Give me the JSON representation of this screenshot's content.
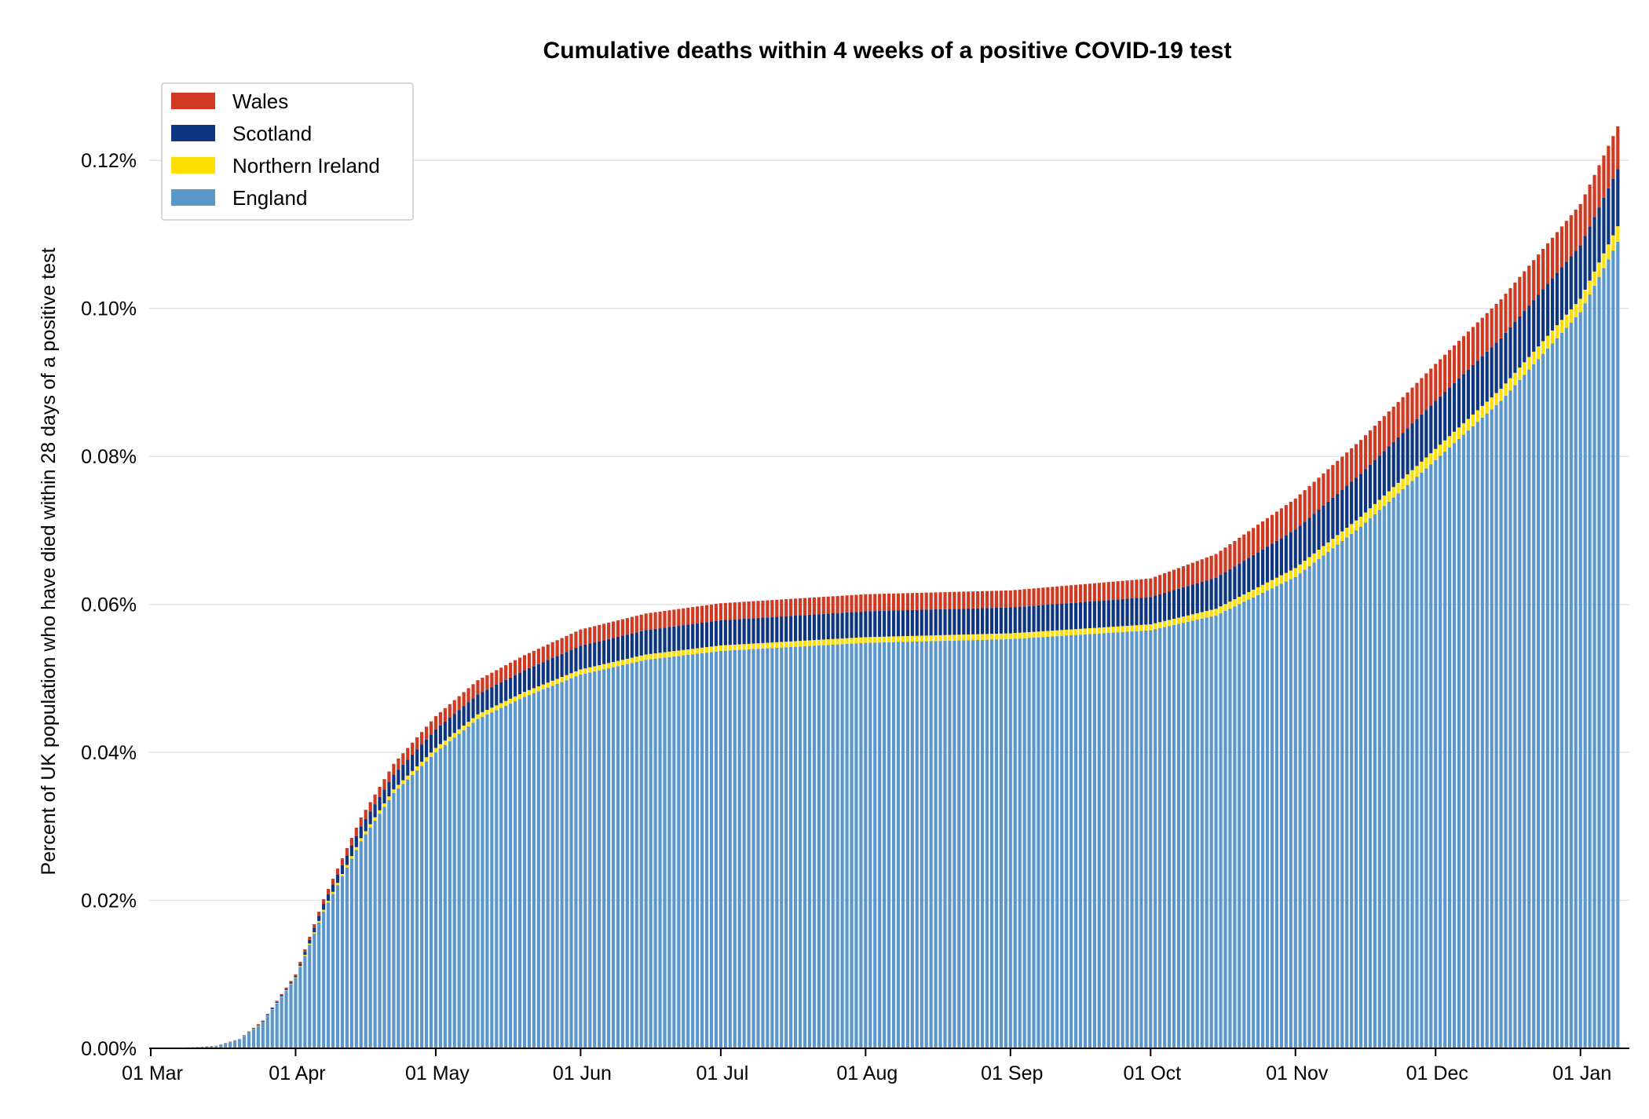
{
  "chart_data": {
    "type": "bar",
    "stacked": true,
    "title": "Cumulative deaths within 4 weeks of a positive COVID-19 test",
    "ylabel": "Percent of UK population who have died within 28 days of a positive test",
    "xlabel": "",
    "x_start": "2020-03-01",
    "x_end": "2021-01-10",
    "ylim": [
      0,
      0.13
    ],
    "y_ticks": [
      {
        "value": 0.0,
        "label": "0.00%"
      },
      {
        "value": 0.02,
        "label": "0.02%"
      },
      {
        "value": 0.04,
        "label": "0.04%"
      },
      {
        "value": 0.06,
        "label": "0.06%"
      },
      {
        "value": 0.08,
        "label": "0.08%"
      },
      {
        "value": 0.1,
        "label": "0.10%"
      },
      {
        "value": 0.12,
        "label": "0.12%"
      }
    ],
    "x_ticks": [
      {
        "date": "2020-03-01",
        "label": "01 Mar"
      },
      {
        "date": "2020-04-01",
        "label": "01 Apr"
      },
      {
        "date": "2020-05-01",
        "label": "01 May"
      },
      {
        "date": "2020-06-01",
        "label": "01 Jun"
      },
      {
        "date": "2020-07-01",
        "label": "01 Jul"
      },
      {
        "date": "2020-08-01",
        "label": "01 Aug"
      },
      {
        "date": "2020-09-01",
        "label": "01 Sep"
      },
      {
        "date": "2020-10-01",
        "label": "01 Oct"
      },
      {
        "date": "2020-11-01",
        "label": "01 Nov"
      },
      {
        "date": "2020-12-01",
        "label": "01 Dec"
      },
      {
        "date": "2021-01-01",
        "label": "01 Jan"
      }
    ],
    "grid": "horizontal",
    "legend_position": "top-left",
    "legend": [
      "Wales",
      "Scotland",
      "Northern Ireland",
      "England"
    ],
    "series": [
      {
        "name": "England",
        "color": "#5b97cc",
        "keyframes": [
          [
            "2020-03-01",
            0
          ],
          [
            "2020-03-10",
            0.0001
          ],
          [
            "2020-03-15",
            0.0003
          ],
          [
            "2020-03-20",
            0.0012
          ],
          [
            "2020-03-25",
            0.0035
          ],
          [
            "2020-04-01",
            0.0095
          ],
          [
            "2020-04-07",
            0.0185
          ],
          [
            "2020-04-15",
            0.028
          ],
          [
            "2020-04-22",
            0.0345
          ],
          [
            "2020-05-01",
            0.04
          ],
          [
            "2020-05-10",
            0.0445
          ],
          [
            "2020-05-20",
            0.0475
          ],
          [
            "2020-06-01",
            0.0505
          ],
          [
            "2020-06-15",
            0.0525
          ],
          [
            "2020-07-01",
            0.0537
          ],
          [
            "2020-08-01",
            0.0548
          ],
          [
            "2020-09-01",
            0.0553
          ],
          [
            "2020-10-01",
            0.0565
          ],
          [
            "2020-10-15",
            0.0585
          ],
          [
            "2020-11-01",
            0.0637
          ],
          [
            "2020-11-15",
            0.0705
          ],
          [
            "2020-12-01",
            0.0795
          ],
          [
            "2020-12-15",
            0.0875
          ],
          [
            "2021-01-01",
            0.0995
          ],
          [
            "2021-01-09",
            0.109
          ]
        ]
      },
      {
        "name": "Northern Ireland",
        "color": "#ffdf00",
        "keyframes": [
          [
            "2020-03-01",
            0
          ],
          [
            "2020-03-20",
            3e-05
          ],
          [
            "2020-04-01",
            0.0001
          ],
          [
            "2020-04-15",
            0.0004
          ],
          [
            "2020-05-01",
            0.0006
          ],
          [
            "2020-06-01",
            0.0007
          ],
          [
            "2020-07-01",
            0.00075
          ],
          [
            "2020-10-01",
            0.0008
          ],
          [
            "2020-10-15",
            0.0009
          ],
          [
            "2020-11-01",
            0.0012
          ],
          [
            "2020-12-01",
            0.0015
          ],
          [
            "2021-01-01",
            0.0018
          ],
          [
            "2021-01-09",
            0.0021
          ]
        ]
      },
      {
        "name": "Scotland",
        "color": "#0e3581",
        "keyframes": [
          [
            "2020-03-01",
            0
          ],
          [
            "2020-03-20",
            3e-05
          ],
          [
            "2020-04-01",
            0.0002
          ],
          [
            "2020-04-15",
            0.0016
          ],
          [
            "2020-05-01",
            0.0025
          ],
          [
            "2020-06-01",
            0.0032
          ],
          [
            "2020-07-01",
            0.0034
          ],
          [
            "2020-08-01",
            0.0035
          ],
          [
            "2020-09-01",
            0.0035
          ],
          [
            "2020-10-01",
            0.0037
          ],
          [
            "2020-10-15",
            0.0042
          ],
          [
            "2020-11-01",
            0.0052
          ],
          [
            "2020-12-01",
            0.0065
          ],
          [
            "2021-01-01",
            0.0072
          ],
          [
            "2021-01-09",
            0.0077
          ]
        ]
      },
      {
        "name": "Wales",
        "color": "#d13a22",
        "keyframes": [
          [
            "2020-03-01",
            0
          ],
          [
            "2020-03-20",
            2e-05
          ],
          [
            "2020-04-01",
            0.0002
          ],
          [
            "2020-04-15",
            0.0012
          ],
          [
            "2020-05-01",
            0.0018
          ],
          [
            "2020-06-01",
            0.0022
          ],
          [
            "2020-07-01",
            0.0023
          ],
          [
            "2020-08-01",
            0.0023
          ],
          [
            "2020-09-01",
            0.0023
          ],
          [
            "2020-10-01",
            0.0025
          ],
          [
            "2020-10-15",
            0.0032
          ],
          [
            "2020-11-01",
            0.0042
          ],
          [
            "2020-12-01",
            0.005
          ],
          [
            "2021-01-01",
            0.0056
          ],
          [
            "2021-01-09",
            0.0058
          ]
        ]
      }
    ]
  }
}
